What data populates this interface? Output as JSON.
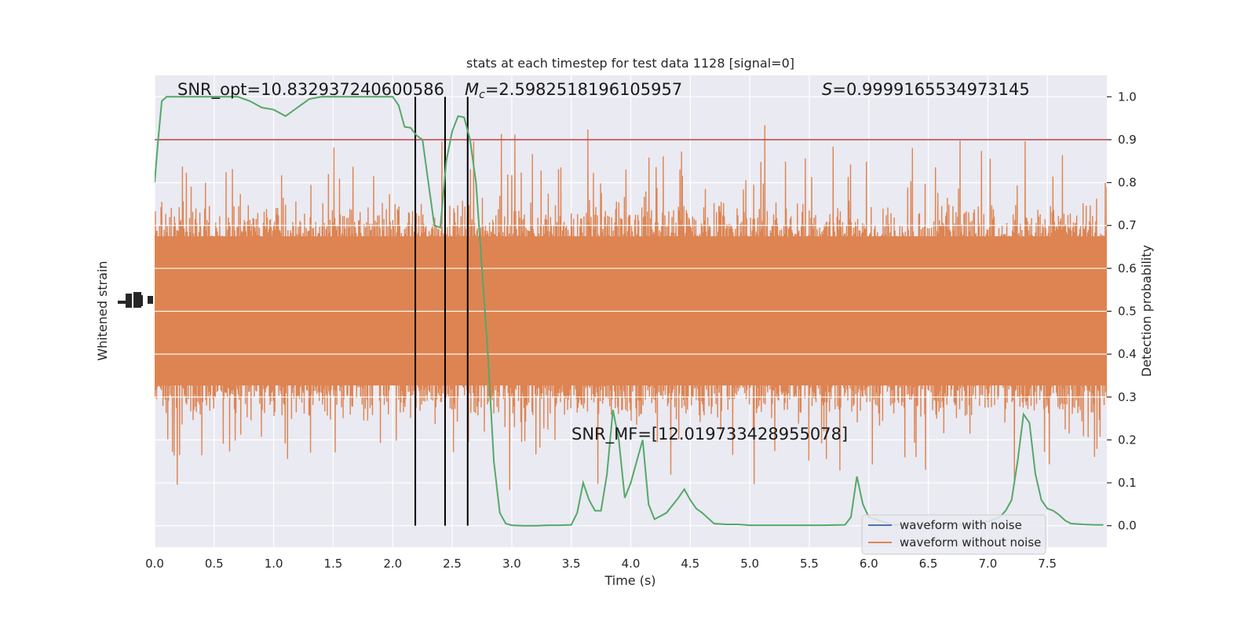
{
  "chart_data": {
    "type": "line",
    "title": "stats at each timestep for test data 1128 [signal=0]",
    "xlabel": "Time (s)",
    "ylabel_left": "Whitened strain",
    "ylabel_right": "Detection probability",
    "xlim": [
      0.0,
      8.0
    ],
    "ylim_right": [
      -0.05,
      1.05
    ],
    "x_ticks": [
      "0.0",
      "0.5",
      "1.0",
      "1.5",
      "2.0",
      "2.5",
      "3.0",
      "3.5",
      "4.0",
      "4.5",
      "5.0",
      "5.5",
      "6.0",
      "6.5",
      "7.0",
      "7.5"
    ],
    "x_tick_values": [
      0.0,
      0.5,
      1.0,
      1.5,
      2.0,
      2.5,
      3.0,
      3.5,
      4.0,
      4.5,
      5.0,
      5.5,
      6.0,
      6.5,
      7.0,
      7.5
    ],
    "y_ticks_right": [
      "0.0",
      "0.1",
      "0.2",
      "0.3",
      "0.4",
      "0.5",
      "0.6",
      "0.7",
      "0.8",
      "0.9",
      "1.0"
    ],
    "y_tick_values_right": [
      0.0,
      0.1,
      0.2,
      0.3,
      0.4,
      0.5,
      0.6,
      0.7,
      0.8,
      0.9,
      1.0
    ],
    "threshold": 0.9,
    "vertical_markers": [
      2.19,
      2.44,
      2.63
    ],
    "annotations": {
      "snr_opt": "SNR_opt=10.832937240600586",
      "mc_symbol": "M",
      "mc_subscript": "c",
      "mc_value": "=2.5982518196105957",
      "s_symbol": "S",
      "s_value": "=0.9999165534973145",
      "snr_mf": "SNR_MF=[12.019733428955078]"
    },
    "legend": {
      "placement": "bottom-right",
      "entries": [
        "waveform with noise",
        "waveform without noise"
      ]
    },
    "grid": true,
    "colors": {
      "background": "#eaeaf2",
      "grid": "#ffffff",
      "noise_strain": "#dd8452",
      "clean_strain": "#4c72b0",
      "probability": "#55a868",
      "threshold": "#c44e52",
      "markers": "#000000"
    },
    "series": [
      {
        "name": "waveform without noise",
        "kind": "strain-noise-band"
      },
      {
        "name": "detection probability",
        "axis": "right",
        "x": [
          0.0,
          0.03,
          0.06,
          0.1,
          0.15,
          0.2,
          0.3,
          0.5,
          0.7,
          0.8,
          0.9,
          1.0,
          1.1,
          1.2,
          1.3,
          1.4,
          1.5,
          1.6,
          1.7,
          1.8,
          1.9,
          2.0,
          2.05,
          2.1,
          2.15,
          2.2,
          2.25,
          2.3,
          2.35,
          2.4,
          2.45,
          2.5,
          2.55,
          2.6,
          2.65,
          2.7,
          2.75,
          2.8,
          2.85,
          2.9,
          2.95,
          3.0,
          3.1,
          3.2,
          3.3,
          3.4,
          3.5,
          3.55,
          3.6,
          3.65,
          3.7,
          3.75,
          3.8,
          3.85,
          3.9,
          3.95,
          4.0,
          4.05,
          4.1,
          4.15,
          4.2,
          4.3,
          4.4,
          4.45,
          4.5,
          4.55,
          4.6,
          4.7,
          4.8,
          4.9,
          5.0,
          5.2,
          5.4,
          5.6,
          5.8,
          5.85,
          5.9,
          5.95,
          6.0,
          6.2,
          6.4,
          6.6,
          6.8,
          7.0,
          7.1,
          7.15,
          7.2,
          7.25,
          7.3,
          7.35,
          7.4,
          7.45,
          7.5,
          7.55,
          7.6,
          7.65,
          7.7,
          7.8,
          7.9,
          7.97
        ],
        "y": [
          0.8,
          0.9,
          0.99,
          1.0,
          1.0,
          1.0,
          1.0,
          1.0,
          1.0,
          0.99,
          0.975,
          0.97,
          0.955,
          0.975,
          0.995,
          1.0,
          1.0,
          1.0,
          1.0,
          1.0,
          1.0,
          1.0,
          0.98,
          0.93,
          0.928,
          0.91,
          0.9,
          0.8,
          0.7,
          0.695,
          0.85,
          0.92,
          0.955,
          0.952,
          0.9,
          0.8,
          0.6,
          0.4,
          0.15,
          0.03,
          0.005,
          0.001,
          0.0,
          0.0,
          0.001,
          0.001,
          0.002,
          0.03,
          0.1,
          0.06,
          0.035,
          0.035,
          0.12,
          0.27,
          0.2,
          0.065,
          0.1,
          0.15,
          0.2,
          0.05,
          0.015,
          0.03,
          0.065,
          0.085,
          0.06,
          0.04,
          0.03,
          0.005,
          0.003,
          0.003,
          0.001,
          0.001,
          0.001,
          0.001,
          0.002,
          0.02,
          0.115,
          0.05,
          0.02,
          0.002,
          0.002,
          0.002,
          0.002,
          0.01,
          0.02,
          0.035,
          0.06,
          0.15,
          0.26,
          0.24,
          0.12,
          0.06,
          0.04,
          0.035,
          0.025,
          0.012,
          0.005,
          0.003,
          0.002,
          0.002
        ]
      }
    ]
  }
}
